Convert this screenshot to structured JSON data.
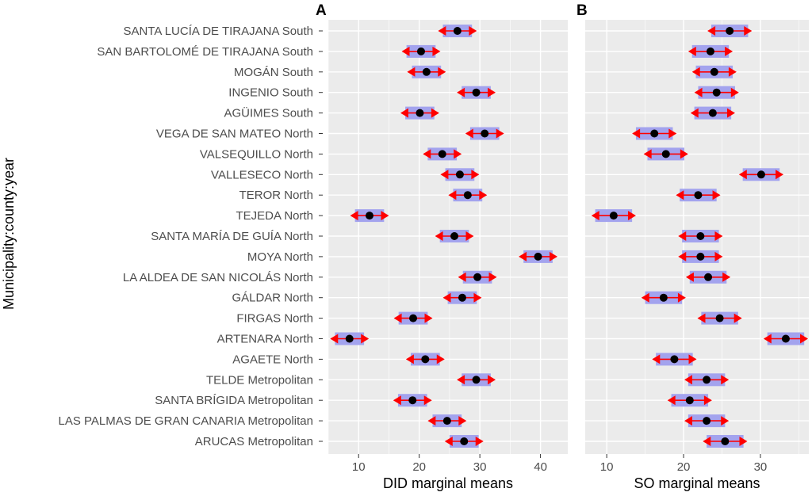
{
  "chart_data": {
    "type": "forest-interval",
    "y_axis_title": "Municipality:county:year",
    "categories": [
      "SANTA LUCÍA DE TIRAJANA South",
      "SAN BARTOLOMÉ DE TIRAJANA South",
      "MOGÁN South",
      "INGENIO South",
      "AGÜIMES South",
      "VEGA DE SAN MATEO North",
      "VALSEQUILLO North",
      "VALLESECO North",
      "TEROR North",
      "TEJEDA North",
      "SANTA MARÍA DE GUÍA North",
      "MOYA North",
      "LA ALDEA DE SAN NICOLÁS North",
      "GÁLDAR North",
      "FIRGAS North",
      "ARTENARA North",
      "AGAETE North",
      "TELDE Metropolitan",
      "SANTA BRÍGIDA Metropolitan",
      "LAS PALMAS DE GRAN CANARIA Metropolitan",
      "ARUCAS Metropolitan"
    ],
    "panels": [
      {
        "tag": "A",
        "xlabel": "DID marginal means",
        "xlim": [
          5,
          44.5
        ],
        "xticks": [
          10,
          20,
          30,
          40
        ],
        "means": [
          26.3,
          20.3,
          21.2,
          29.4,
          20.1,
          30.8,
          23.8,
          26.7,
          28.0,
          11.8,
          25.8,
          39.6,
          29.6,
          27.1,
          19.0,
          8.5,
          21.0,
          29.4,
          18.9,
          24.6,
          27.4
        ],
        "ci_halfwidth": 2.4,
        "err_halfwidth": 3.2
      },
      {
        "tag": "B",
        "xlabel": "SO marginal means",
        "xlim": [
          7.2,
          36.3
        ],
        "xticks": [
          10,
          20,
          30
        ],
        "means": [
          26.0,
          23.5,
          24.0,
          24.3,
          23.8,
          16.2,
          17.7,
          30.1,
          21.9,
          10.9,
          22.2,
          22.2,
          23.2,
          17.4,
          24.7,
          33.3,
          18.8,
          23.0,
          20.8,
          23.0,
          25.4
        ],
        "ci_halfwidth": 2.4,
        "err_halfwidth": 2.9
      }
    ]
  }
}
